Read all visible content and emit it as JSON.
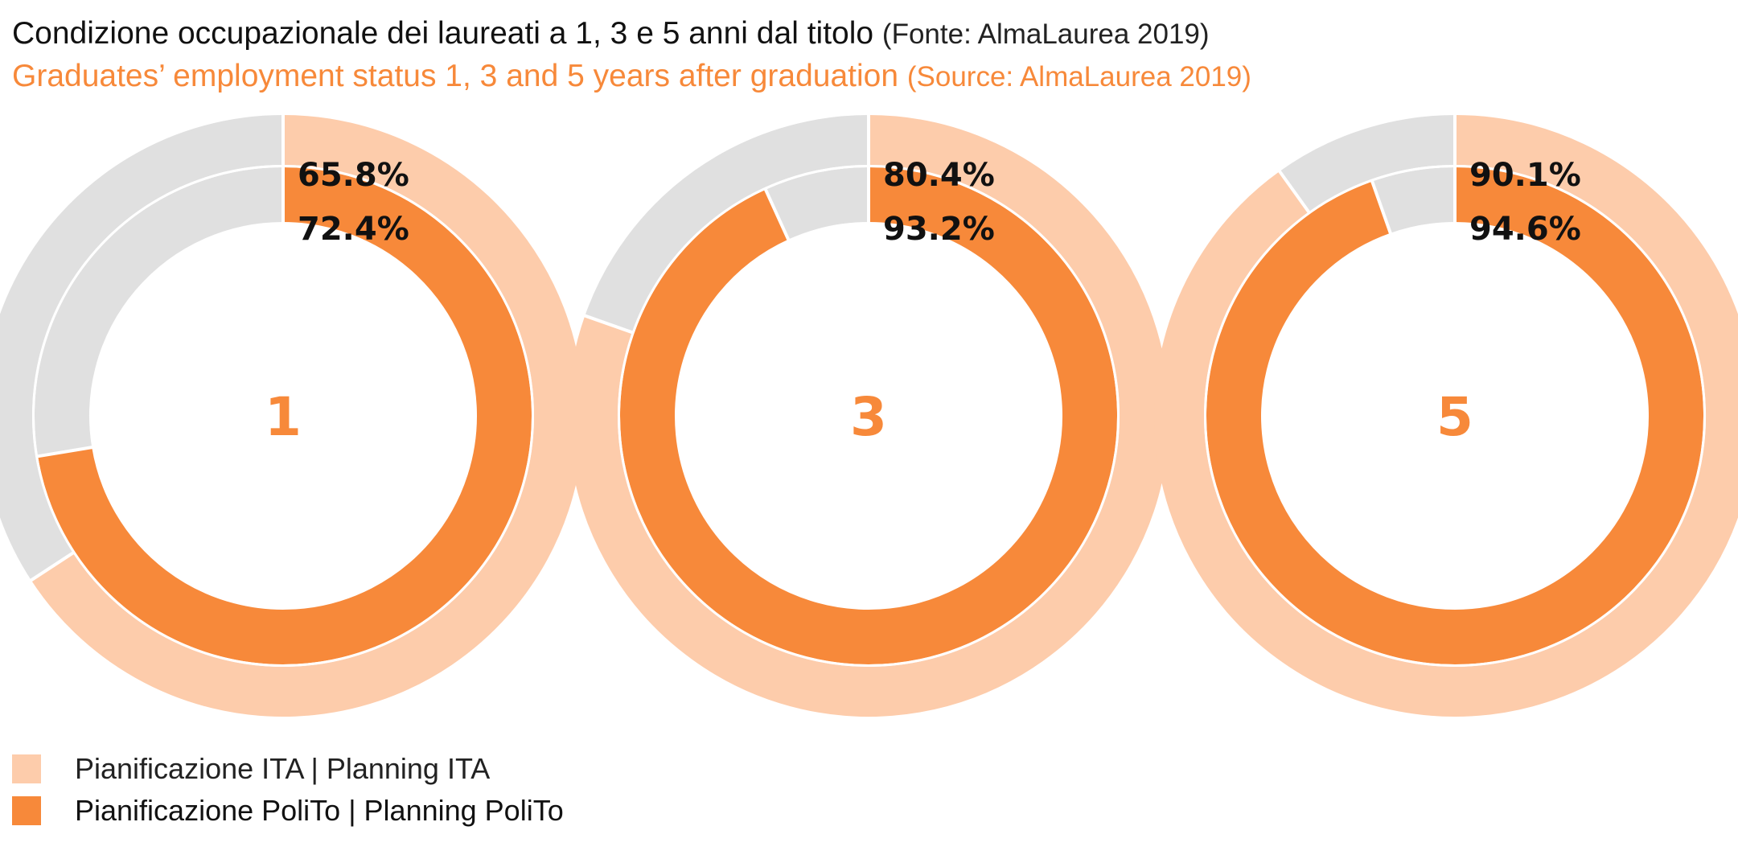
{
  "header": {
    "title_it": "Condizione occupazionale dei laureati a 1, 3 e 5 anni dal titolo",
    "source_it": "(Fonte: AlmaLaurea 2019)",
    "title_en": "Graduates’ employment status 1, 3 and 5 years after graduation",
    "source_en": "(Source: AlmaLaurea 2019)"
  },
  "colors": {
    "ita": "#fdccab",
    "polito": "#f7893a",
    "remainder": "#e0e0e0",
    "center_label": "#f7893a"
  },
  "legend": {
    "items": [
      {
        "label": "Pianificazione ITA | Planning ITA",
        "color": "#fdccab"
      },
      {
        "label": "Pianificazione PoliTo | Planning PoliTo",
        "color": "#f7893a"
      }
    ]
  },
  "chart_data": [
    {
      "type": "pie",
      "center_label": "1",
      "unit": "%",
      "series": [
        {
          "name": "Pianificazione ITA | Planning ITA",
          "ring": "outer",
          "value": 65.8,
          "label": "65.8%"
        },
        {
          "name": "Pianificazione PoliTo | Planning PoliTo",
          "ring": "inner",
          "value": 72.4,
          "label": "72.4%"
        }
      ]
    },
    {
      "type": "pie",
      "center_label": "3",
      "unit": "%",
      "series": [
        {
          "name": "Pianificazione ITA | Planning ITA",
          "ring": "outer",
          "value": 80.4,
          "label": "80.4%"
        },
        {
          "name": "Pianificazione PoliTo | Planning PoliTo",
          "ring": "inner",
          "value": 93.2,
          "label": "93.2%"
        }
      ]
    },
    {
      "type": "pie",
      "center_label": "5",
      "unit": "%",
      "series": [
        {
          "name": "Pianificazione ITA | Planning ITA",
          "ring": "outer",
          "value": 90.1,
          "label": "90.1%"
        },
        {
          "name": "Pianificazione PoliTo | Planning PoliTo",
          "ring": "inner",
          "value": 94.6,
          "label": "94.6%"
        }
      ]
    }
  ]
}
